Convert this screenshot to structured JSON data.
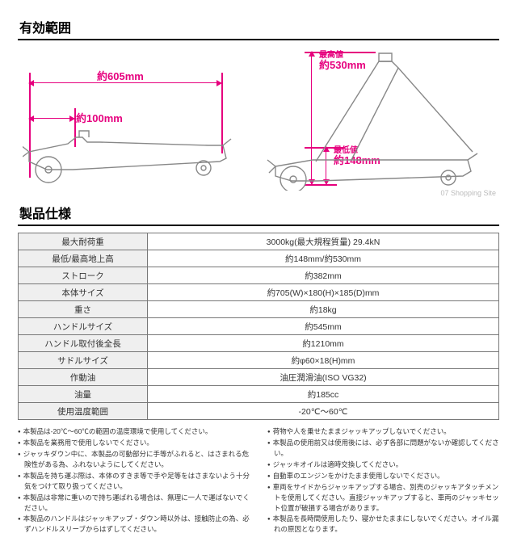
{
  "colors": {
    "accent": "#e6007e",
    "line": "#888888",
    "border": "#777",
    "header_rule": "#000",
    "cell_bg": "#efefef"
  },
  "header1": "有効範囲",
  "header2": "製品仕様",
  "diagram": {
    "width_label": "約605mm",
    "step_label": "約100mm",
    "max_label_prefix": "最高値",
    "max_label": "約530mm",
    "min_label_prefix": "最低値",
    "min_label": "約148mm",
    "watermark": "07 Shopping Site"
  },
  "spec_rows": [
    {
      "k": "最大耐荷重",
      "v": "3000kg(最大規程質量) 29.4kN"
    },
    {
      "k": "最低/最高地上高",
      "v": "約148mm/約530mm"
    },
    {
      "k": "ストローク",
      "v": "約382mm"
    },
    {
      "k": "本体サイズ",
      "v": "約705(W)×180(H)×185(D)mm"
    },
    {
      "k": "重さ",
      "v": "約18kg"
    },
    {
      "k": "ハンドルサイズ",
      "v": "約545mm"
    },
    {
      "k": "ハンドル取付後全長",
      "v": "約1210mm"
    },
    {
      "k": "サドルサイズ",
      "v": "約φ60×18(H)mm"
    },
    {
      "k": "作動油",
      "v": "油圧潤滑油(ISO VG32)"
    },
    {
      "k": "油量",
      "v": "約185cc"
    },
    {
      "k": "使用温度範囲",
      "v": "-20℃～60℃"
    }
  ],
  "notes_left": [
    "本製品は-20℃～60℃の範囲の温度環境で使用してください。",
    "本製品を業務用で使用しないでください。",
    "ジャッキダウン中に、本製品の可動部分に手等がふれると、はさまれる危険性がある為、ふれないようにしてください。",
    "本製品を持ち運ぶ際は、本体のすきま等で手や足等をはさまないよう十分気をつけて取り扱ってください。",
    "本製品は非常に重いので持ち運ばれる場合は、無理に一人で運ばないでください。",
    "本製品のハンドルはジャッキアップ・ダウン時以外は、接触防止の為、必ずハンドルスリーブからはずしてください。"
  ],
  "notes_right": [
    "荷物や人を乗せたままジャッキアップしないでください。",
    "本製品の使用前又は使用後には、必ず各部に問題がないか確認してください。",
    "ジャッキオイルは適時交換してください。",
    "自動車のエンジンをかけたまま使用しないでください。",
    "車両をサイドからジャッキアップする場合、別売のジャッキアタッチメントを使用してください。直接ジャッキアップすると、車両のジャッキセット位置が破損する場合があります。",
    "本製品を長時間使用したり、寝かせたままにしないでください。オイル漏れの原因となります。"
  ]
}
